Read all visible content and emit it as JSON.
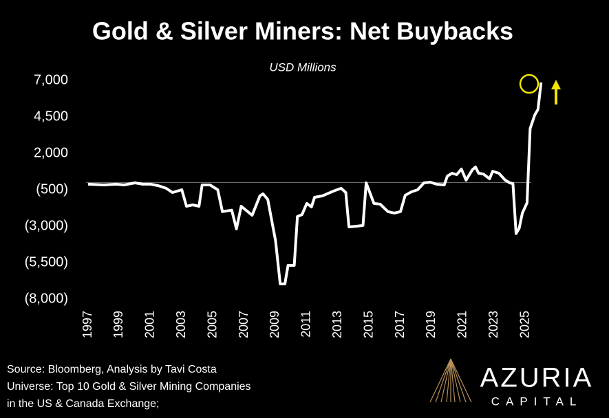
{
  "chart_data": {
    "type": "line",
    "title": "Gold & Silver Miners: Net Buybacks",
    "subtitle": "USD Millions",
    "x": [
      1997.0,
      1998.0,
      1998.8,
      1999.3,
      2000.0,
      2000.5,
      2001.0,
      2001.5,
      2002.0,
      2002.4,
      2003.0,
      2003.3,
      2003.7,
      2004.1,
      2004.3,
      2004.8,
      2005.3,
      2005.6,
      2006.2,
      2006.5,
      2006.8,
      2007.5,
      2008.0,
      2008.2,
      2008.5,
      2009.0,
      2009.3,
      2009.6,
      2009.8,
      2010.2,
      2010.4,
      2010.7,
      2011.0,
      2011.3,
      2011.5,
      2012.0,
      2012.3,
      2012.8,
      2013.2,
      2013.5,
      2013.7,
      2014.2,
      2014.6,
      2014.8,
      2015.3,
      2015.7,
      2016.2,
      2016.6,
      2017.0,
      2017.3,
      2017.7,
      2018.1,
      2018.5,
      2018.9,
      2019.3,
      2019.8,
      2020.0,
      2020.3,
      2020.6,
      2020.9,
      2021.2,
      2021.6,
      2021.8,
      2022.0,
      2022.3,
      2022.7,
      2022.9,
      2023.3,
      2023.7,
      2024.0,
      2024.2,
      2024.4,
      2024.6,
      2024.8,
      2025.1,
      2025.3,
      2025.6,
      2025.8,
      2026.0
    ],
    "values": [
      -120,
      -170,
      -120,
      -170,
      -30,
      -120,
      -120,
      -220,
      -400,
      -690,
      -500,
      -1630,
      -1540,
      -1630,
      -170,
      -170,
      -500,
      -2000,
      -1900,
      -3190,
      -1630,
      -2250,
      -920,
      -780,
      -1160,
      -3990,
      -6960,
      -6960,
      -5690,
      -5690,
      -2340,
      -2200,
      -1440,
      -1680,
      -1020,
      -920,
      -780,
      -550,
      -400,
      -690,
      -3050,
      -3000,
      -2950,
      -30,
      -1440,
      -1490,
      -2000,
      -2100,
      -2000,
      -880,
      -640,
      -500,
      -30,
      20,
      -120,
      -170,
      440,
      630,
      540,
      920,
      160,
      870,
      1060,
      630,
      580,
      250,
      770,
      630,
      160,
      -30,
      -80,
      -3510,
      -3140,
      -2100,
      -1400,
      3700,
      4640,
      5010,
      6860
    ],
    "color": "#ffffff",
    "xlim": [
      1996.5,
      2026.5
    ],
    "xticks": [
      1997,
      1999,
      2001,
      2003,
      2005,
      2007,
      2009,
      2011,
      2013,
      2015,
      2017,
      2019,
      2021,
      2023,
      2025
    ],
    "ylim": [
      -8000,
      7000
    ],
    "yticks": [
      {
        "value": -8000,
        "label": "(8,000)"
      },
      {
        "value": -5500,
        "label": "(5,500)"
      },
      {
        "value": -3000,
        "label": "(3,000)"
      },
      {
        "value": -500,
        "label": "(500)"
      },
      {
        "value": 2000,
        "label": "2,000"
      },
      {
        "value": 4500,
        "label": "4,500"
      },
      {
        "value": 7000,
        "label": "7,000"
      }
    ],
    "hline": 0,
    "grid": false
  },
  "notes": [
    "Source: Bloomberg, Analysis by Tavi Costa",
    "Universe: Top 10 Gold & Silver Mining Companies",
    "in the US & Canada Exchange;"
  ],
  "logo": {
    "name": "AZURIA",
    "tagline": "CAPITAL"
  }
}
